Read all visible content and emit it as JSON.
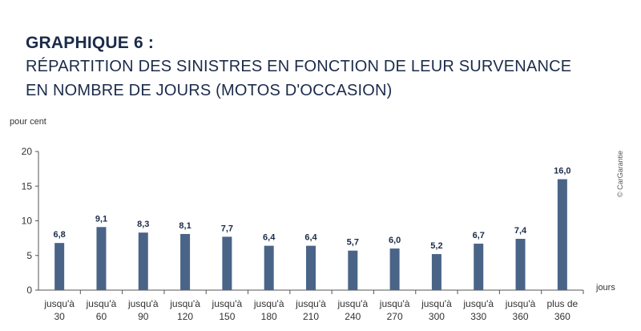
{
  "header": {
    "title_bold": "GRAPHIQUE 6 :",
    "title_line1": "RÉPARTITION DES SINISTRES EN FONCTION DE LEUR SURVENANCE",
    "title_line2": "EN NOMBRE DE JOURS (MOTOS D'OCCASION)"
  },
  "credit": "© CarGarantie",
  "chart_data": {
    "type": "bar",
    "ylabel": "pour cent",
    "xlabel": "jours",
    "ylim": [
      0,
      20
    ],
    "yticks": [
      0,
      5,
      10,
      15,
      20
    ],
    "grid": false,
    "bar_color": "#4a6488",
    "categories": [
      [
        "jusqu'à",
        "30"
      ],
      [
        "jusqu'à",
        "60"
      ],
      [
        "jusqu'à",
        "90"
      ],
      [
        "jusqu'à",
        "120"
      ],
      [
        "jusqu'à",
        "150"
      ],
      [
        "jusqu'à",
        "180"
      ],
      [
        "jusqu'à",
        "210"
      ],
      [
        "jusqu'à",
        "240"
      ],
      [
        "jusqu'à",
        "270"
      ],
      [
        "jusqu'à",
        "300"
      ],
      [
        "jusqu'à",
        "330"
      ],
      [
        "jusqu'à",
        "360"
      ],
      [
        "plus de",
        "360"
      ]
    ],
    "values": [
      6.8,
      9.1,
      8.3,
      8.1,
      7.7,
      6.4,
      6.4,
      5.7,
      6.0,
      5.2,
      6.7,
      7.4,
      16.0
    ],
    "value_labels": [
      "6,8",
      "9,1",
      "8,3",
      "8,1",
      "7,7",
      "6,4",
      "6,4",
      "5,7",
      "6,0",
      "5,2",
      "6,7",
      "7,4",
      "16,0"
    ]
  }
}
